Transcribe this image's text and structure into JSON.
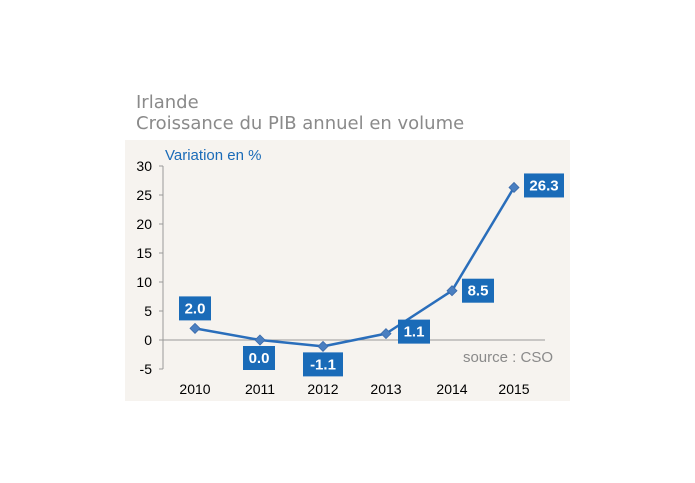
{
  "chart_data": {
    "type": "line",
    "title": "Irlande",
    "subtitle": "Croissance du PIB annuel en volume",
    "ylabel": "Variation en %",
    "xlabel": "",
    "source": "source : CSO",
    "categories": [
      "2010",
      "2011",
      "2012",
      "2013",
      "2014",
      "2015"
    ],
    "series": [
      {
        "values": [
          2.0,
          0.0,
          -1.1,
          1.1,
          8.5,
          26.3
        ]
      }
    ],
    "data_labels": [
      "2.0",
      "0.0",
      "-1.1",
      "1.1",
      "8.5",
      "26.3"
    ],
    "ylim": [
      -5,
      30
    ],
    "yticks": [
      -5,
      0,
      5,
      10,
      15,
      20,
      25,
      30
    ],
    "grid": false,
    "colors": {
      "line": "#2a6ebb",
      "marker": "#4a7fc1",
      "label_bg": "#1a6bb8",
      "label_text": "#ffffff",
      "ylabel": "#1a6bb8",
      "source": "#8a8a8a",
      "axis": "#999999",
      "panel_bg": "#f6f3ef"
    }
  }
}
